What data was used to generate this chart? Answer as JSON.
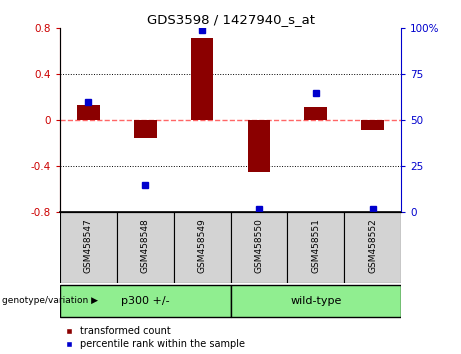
{
  "title": "GDS3598 / 1427940_s_at",
  "samples": [
    "GSM458547",
    "GSM458548",
    "GSM458549",
    "GSM458550",
    "GSM458551",
    "GSM458552"
  ],
  "bar_values": [
    0.13,
    -0.15,
    0.72,
    -0.45,
    0.12,
    -0.08
  ],
  "percentile_values": [
    60,
    15,
    99,
    2,
    65,
    2
  ],
  "bar_color": "#8B0000",
  "dot_color": "#0000CD",
  "groups": [
    {
      "label": "p300 +/-",
      "start": 0,
      "end": 3,
      "color": "#90EE90"
    },
    {
      "label": "wild-type",
      "start": 3,
      "end": 6,
      "color": "#90EE90"
    }
  ],
  "ylim_left": [
    -0.8,
    0.8
  ],
  "ylim_right": [
    0,
    100
  ],
  "yticks_left": [
    -0.8,
    -0.4,
    0.0,
    0.4,
    0.8
  ],
  "ytick_labels_left": [
    "-0.8",
    "-0.4",
    "0",
    "0.4",
    "0.8"
  ],
  "yticks_right": [
    0,
    25,
    50,
    75,
    100
  ],
  "ytick_labels_right": [
    "0",
    "25",
    "50",
    "75",
    "100%"
  ],
  "hline_color": "#FF6666",
  "grid_color": "black",
  "sample_box_color": "#d3d3d3",
  "legend_bar_label": "transformed count",
  "legend_dot_label": "percentile rank within the sample",
  "genotype_label": "genotype/variation"
}
